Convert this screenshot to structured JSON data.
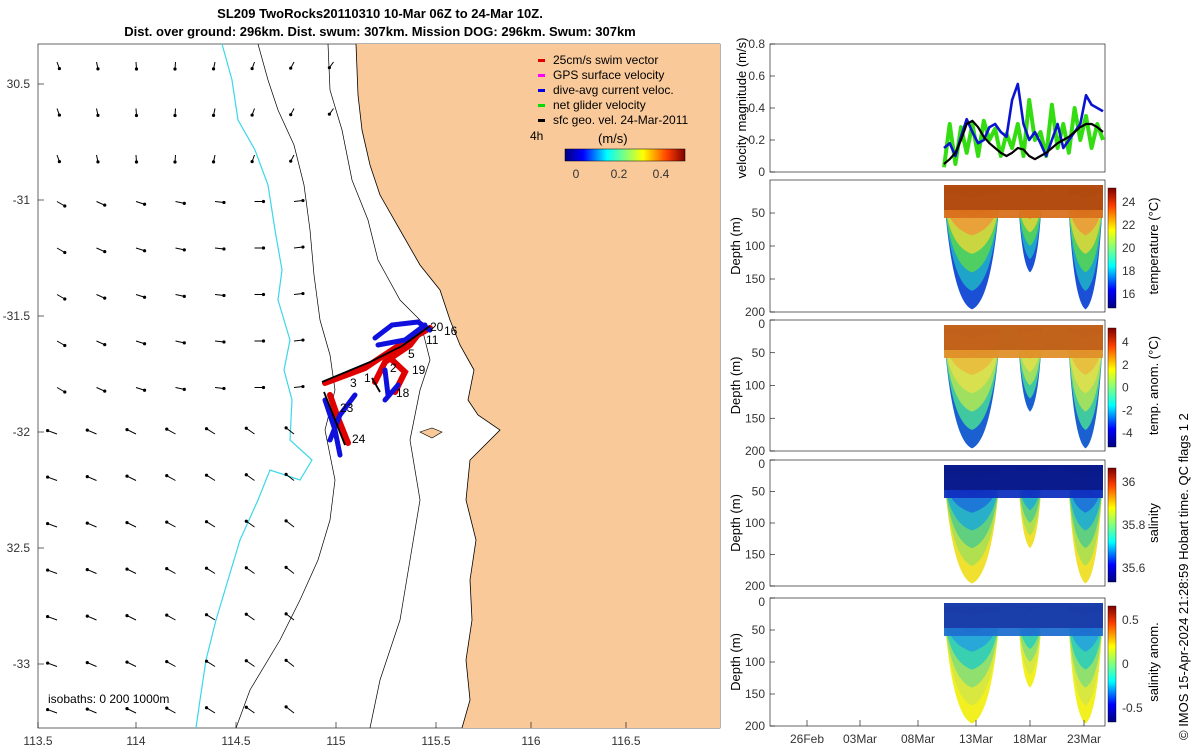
{
  "header": {
    "title_line1": "SL209 TwoRocks20110310 10-Mar 06Z to 24-Mar 10Z.",
    "title_line2": "Dist. over ground: 296km. Dist. swum: 307km. Mission DOG: 296km. Swum: 307km"
  },
  "map": {
    "lon_ticks": [
      "113.5",
      "114",
      "114.5",
      "115",
      "115.5",
      "116",
      "116.5"
    ],
    "lat_ticks": [
      "30.5",
      "-31",
      "-31.5",
      "-32",
      "32.5",
      "-33"
    ],
    "isobaths_label": "isobaths: 0   200  1000m",
    "legend": [
      {
        "label": "25cm/s swim vector",
        "color": "#e00000"
      },
      {
        "label": "GPS surface velocity",
        "color": "#ff00ff"
      },
      {
        "label": "dive-avg current veloc.",
        "color": "#0000e0"
      },
      {
        "label": "net glider velocity",
        "color": "#00dd00"
      },
      {
        "label": "sfc geo. vel. 24-Mar-2011",
        "color": "#000000"
      }
    ],
    "colorbar_label": "(m/s)",
    "colorbar_prefix": "4h",
    "colorbar_ticks": [
      "0",
      "0.2",
      "0.4"
    ],
    "track_labels": [
      "20",
      "16",
      "11",
      "5",
      "2",
      "19",
      "18",
      "3",
      "1",
      "23",
      "24"
    ],
    "land_color": "#f9c99a",
    "shelf_color": "#3ad8e8"
  },
  "chart_data": [
    {
      "type": "line",
      "title": "velocity magnitude",
      "ylabel": "velocity magnitude (m/s)",
      "ylim": [
        0,
        0.8
      ],
      "yticks": [
        "0",
        "0.2",
        "0.4",
        "0.6",
        "0.8"
      ],
      "series": [
        {
          "name": "net glider velocity",
          "color": "#33dd11",
          "x": [
            0,
            0.5,
            1,
            1.5,
            2,
            2.5,
            3,
            3.5,
            4,
            4.5,
            5,
            5.5,
            6,
            6.5,
            7,
            7.5,
            8,
            8.5,
            9,
            9.5,
            10,
            10.5,
            11,
            11.5,
            12,
            12.5,
            13,
            13.5,
            14
          ],
          "values": [
            0.03,
            0.3,
            0.05,
            0.28,
            0.12,
            0.3,
            0.1,
            0.32,
            0.2,
            0.27,
            0.1,
            0.24,
            0.15,
            0.3,
            0.1,
            0.45,
            0.2,
            0.25,
            0.1,
            0.42,
            0.15,
            0.3,
            0.12,
            0.4,
            0.2,
            0.35,
            0.15,
            0.3,
            0.2
          ]
        },
        {
          "name": "dive-avg current veloc.",
          "color": "#0a14d0",
          "x": [
            0,
            0.5,
            1,
            1.5,
            2,
            2.5,
            3,
            3.5,
            4,
            4.5,
            5,
            5.5,
            6,
            6.5,
            7,
            7.5,
            8,
            8.5,
            9,
            9.5,
            10,
            10.5,
            11,
            11.5,
            12,
            12.5,
            13,
            13.5,
            14
          ],
          "values": [
            0.15,
            0.18,
            0.1,
            0.22,
            0.33,
            0.25,
            0.18,
            0.2,
            0.28,
            0.3,
            0.25,
            0.22,
            0.45,
            0.55,
            0.3,
            0.2,
            0.25,
            0.18,
            0.1,
            0.2,
            0.3,
            0.15,
            0.2,
            0.25,
            0.3,
            0.48,
            0.42,
            0.4,
            0.38
          ]
        },
        {
          "name": "sfc geo. vel.",
          "color": "#000000",
          "x": [
            0,
            0.5,
            1,
            1.5,
            2,
            2.5,
            3,
            3.5,
            4,
            4.5,
            5,
            5.5,
            6,
            6.5,
            7,
            7.5,
            8,
            8.5,
            9,
            9.5,
            10,
            10.5,
            11,
            11.5,
            12,
            12.5,
            13,
            13.5,
            14
          ],
          "values": [
            0.05,
            0.08,
            0.12,
            0.2,
            0.3,
            0.32,
            0.28,
            0.22,
            0.18,
            0.15,
            0.12,
            0.1,
            0.12,
            0.15,
            0.14,
            0.1,
            0.08,
            0.1,
            0.12,
            0.15,
            0.18,
            0.2,
            0.22,
            0.25,
            0.28,
            0.3,
            0.3,
            0.28,
            0.25
          ]
        }
      ]
    },
    {
      "type": "heatmap",
      "variable": "temperature",
      "cbar_label": "temperature (°C)",
      "cbar_ticks": [
        "24",
        "22",
        "20",
        "18",
        "16"
      ],
      "ylabel": "Depth (m)",
      "yticks": [
        "50",
        "100",
        "150",
        "200"
      ],
      "ylim": [
        0,
        200
      ]
    },
    {
      "type": "heatmap",
      "variable": "temp. anom.",
      "cbar_label": "temp. anom. (°C)",
      "cbar_ticks": [
        "4",
        "2",
        "0",
        "-2",
        "-4"
      ],
      "ylabel": "Depth (m)",
      "yticks": [
        "0",
        "50",
        "100",
        "150",
        "200"
      ],
      "ylim": [
        0,
        200
      ]
    },
    {
      "type": "heatmap",
      "variable": "salinity",
      "cbar_label": "salinity",
      "cbar_ticks": [
        "36",
        "35.8",
        "35.6"
      ],
      "ylabel": "Depth (m)",
      "yticks": [
        "0",
        "50",
        "100",
        "150",
        "200"
      ],
      "ylim": [
        0,
        200
      ]
    },
    {
      "type": "heatmap",
      "variable": "salinity anom.",
      "cbar_label": "salinity anom.",
      "cbar_ticks": [
        "0.5",
        "0",
        "-0.5"
      ],
      "ylabel": "Depth (m)",
      "yticks": [
        "0",
        "50",
        "100",
        "150",
        "200"
      ],
      "ylim": [
        0,
        200
      ]
    }
  ],
  "time_axis": {
    "ticks": [
      "26Feb",
      "03Mar",
      "08Mar",
      "13Mar",
      "18Mar",
      "23Mar"
    ]
  },
  "footer": {
    "credit": "© IMOS 15-Apr-2024 21:28:59 Hobart time. QC flags 1  2"
  }
}
